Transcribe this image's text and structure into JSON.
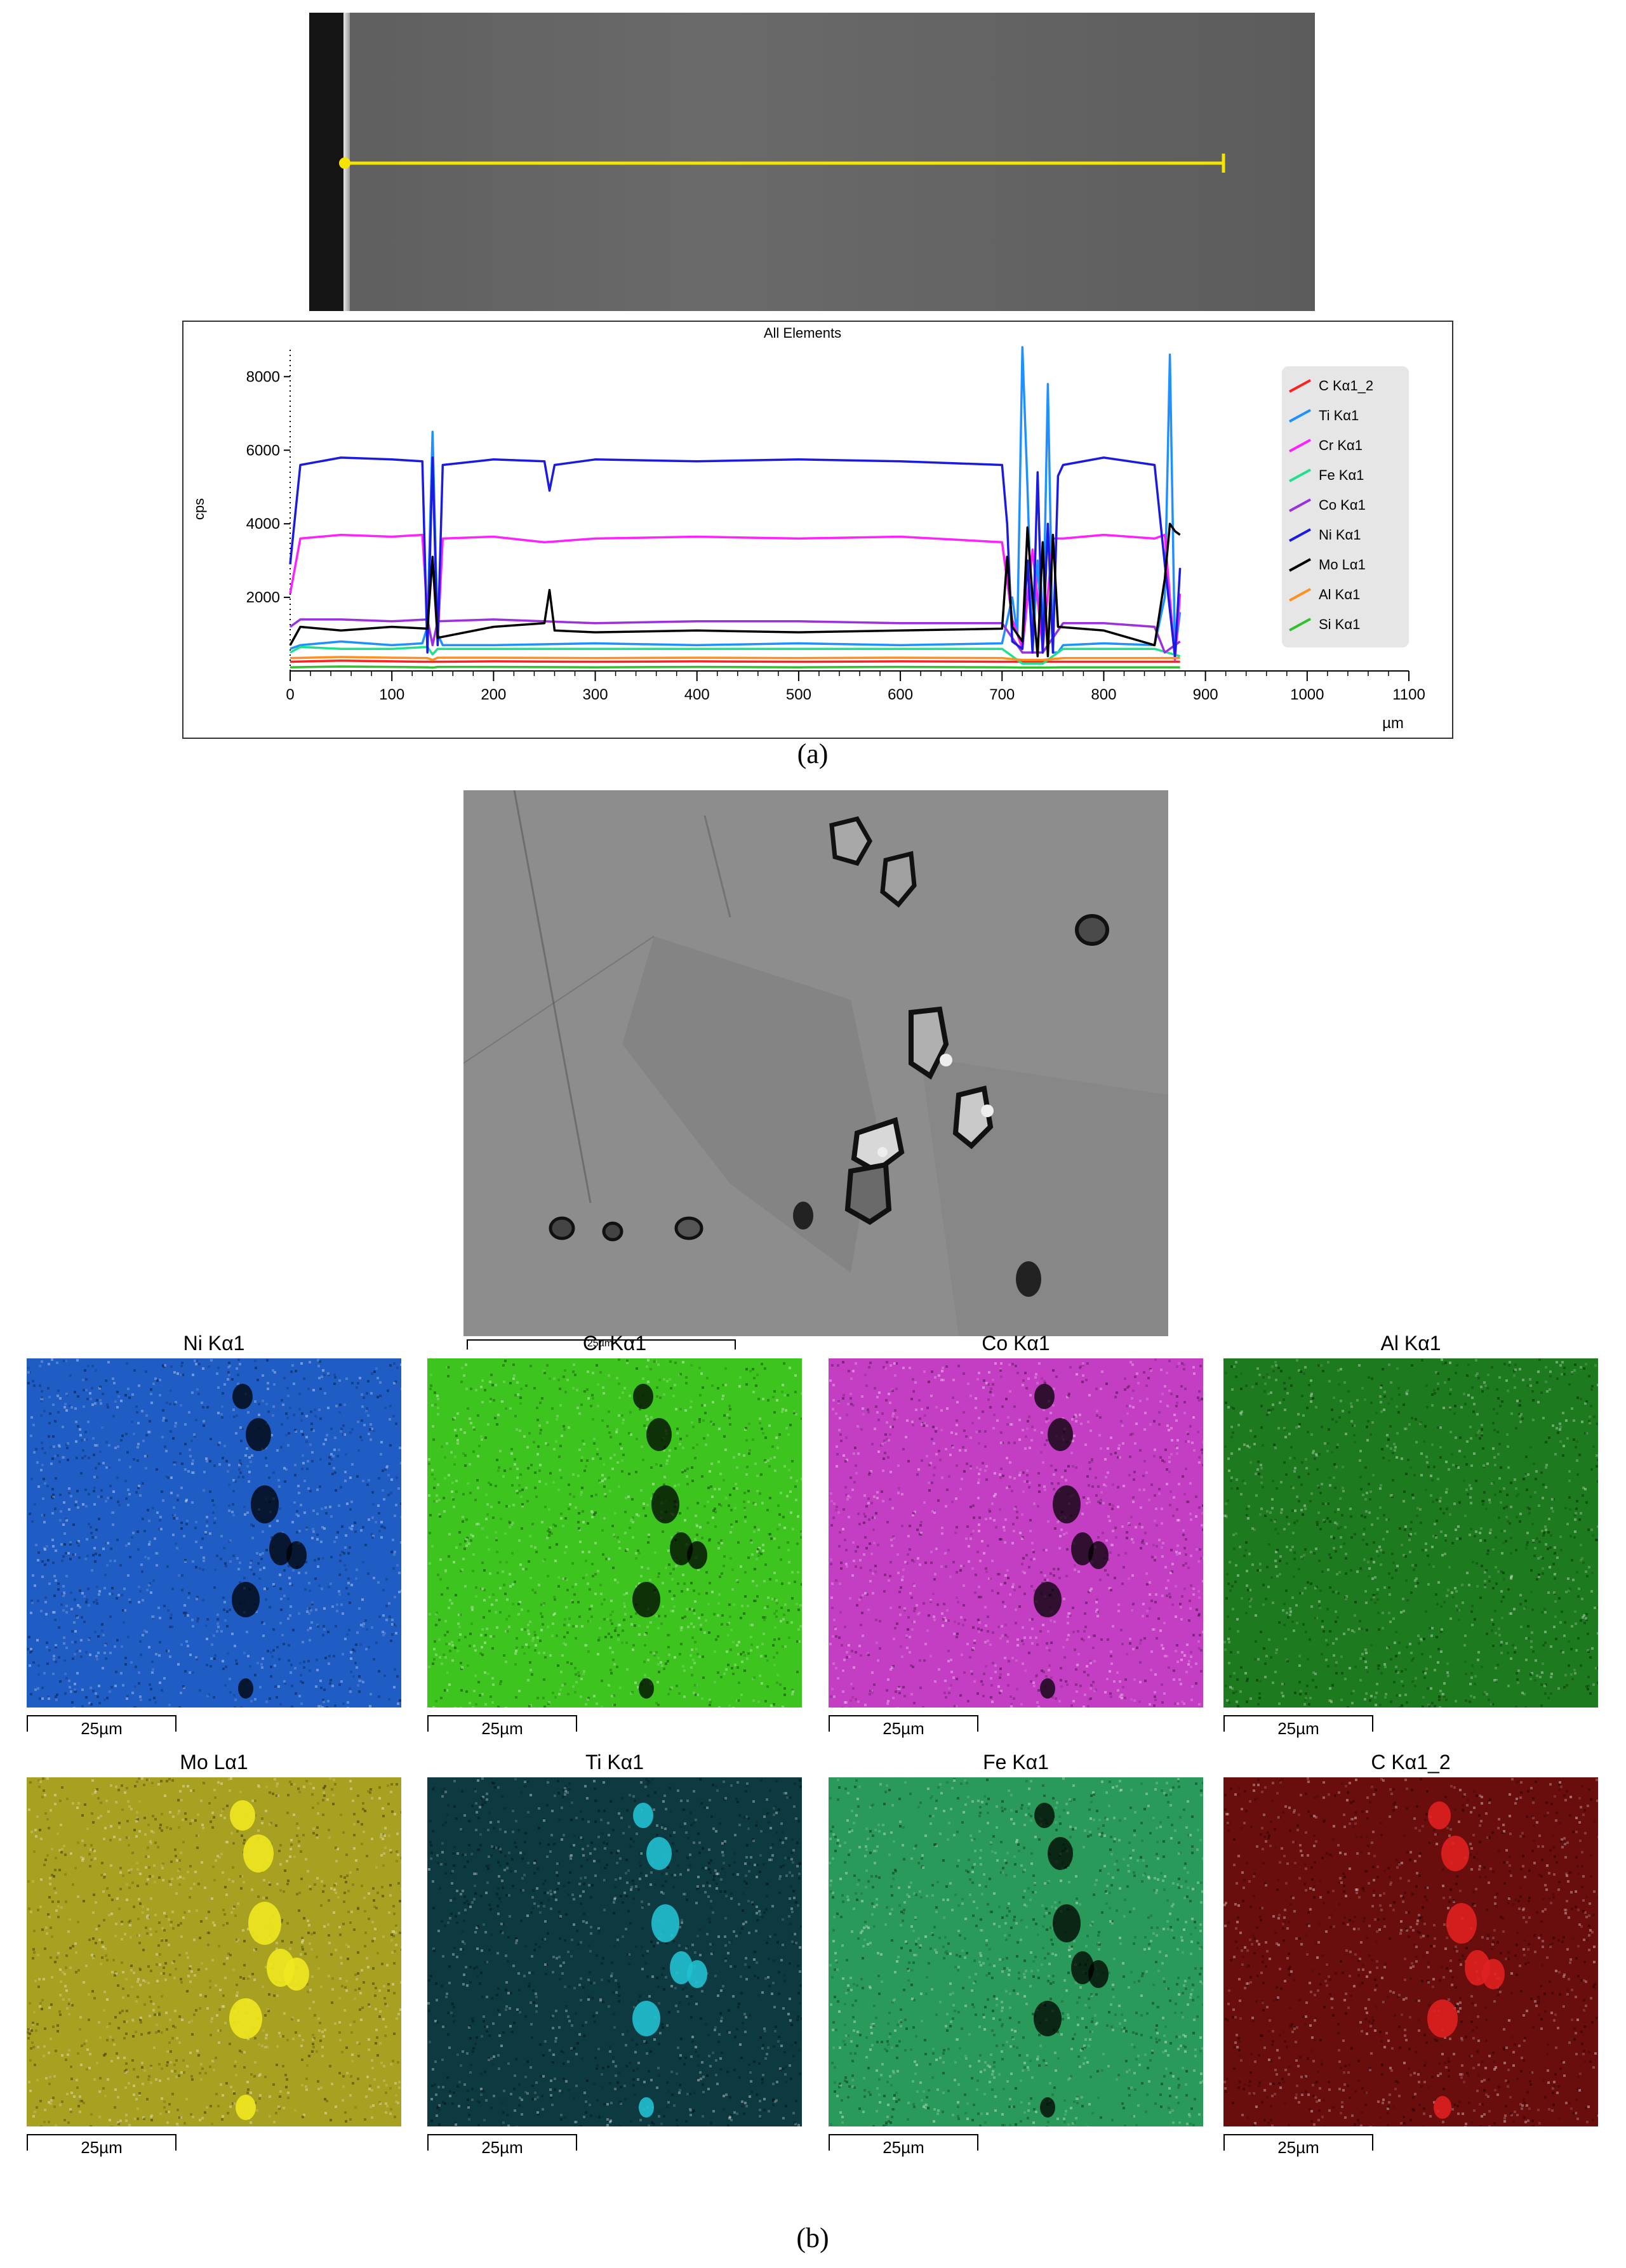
{
  "figure": {
    "panel_a_caption": "(a)",
    "panel_b_caption": "(b)"
  },
  "chart_data": {
    "type": "line",
    "title": "All Elements",
    "ylabel": "cps",
    "xlabel": "",
    "x_unit": "µm",
    "xlim": [
      0,
      1100
    ],
    "ylim": [
      0,
      8800
    ],
    "x_ticks": [
      0,
      100,
      200,
      300,
      400,
      500,
      600,
      700,
      800,
      900,
      1000,
      1100
    ],
    "y_ticks": [
      2000,
      4000,
      6000,
      8000
    ],
    "legend_position": "right",
    "series": [
      {
        "name": "C Kα1_2",
        "color": "#ff2020",
        "x": [
          0,
          50,
          100,
          135,
          140,
          145,
          200,
          300,
          400,
          500,
          600,
          700,
          720,
          740,
          760,
          800,
          850,
          875
        ],
        "y": [
          250,
          280,
          260,
          250,
          250,
          250,
          260,
          250,
          260,
          250,
          260,
          250,
          250,
          250,
          250,
          250,
          250,
          250
        ]
      },
      {
        "name": "Ti Kα1",
        "color": "#1e90ff",
        "x": [
          0,
          10,
          50,
          100,
          130,
          135,
          140,
          145,
          150,
          200,
          300,
          400,
          500,
          600,
          700,
          710,
          715,
          720,
          725,
          730,
          735,
          740,
          745,
          750,
          755,
          760,
          800,
          850,
          860,
          865,
          870,
          875
        ],
        "y": [
          600,
          700,
          800,
          700,
          750,
          1200,
          6500,
          1000,
          700,
          700,
          750,
          700,
          750,
          700,
          750,
          2000,
          1000,
          8800,
          5000,
          500,
          3000,
          500,
          7800,
          500,
          500,
          700,
          750,
          700,
          2000,
          8600,
          500,
          1600
        ]
      },
      {
        "name": "Cr Kα1",
        "color": "#ff20ff",
        "x": [
          0,
          10,
          50,
          100,
          130,
          135,
          140,
          145,
          150,
          200,
          250,
          300,
          400,
          500,
          600,
          700,
          710,
          720,
          730,
          740,
          750,
          760,
          800,
          850,
          860,
          870,
          875
        ],
        "y": [
          2100,
          3600,
          3700,
          3650,
          3700,
          1500,
          3000,
          800,
          3600,
          3650,
          3500,
          3600,
          3650,
          3600,
          3650,
          3500,
          1400,
          600,
          3300,
          600,
          3600,
          3600,
          3700,
          3600,
          3700,
          300,
          2100
        ]
      },
      {
        "name": "Fe Kα1",
        "color": "#20e090",
        "x": [
          0,
          10,
          50,
          100,
          135,
          140,
          145,
          200,
          300,
          400,
          500,
          600,
          700,
          720,
          740,
          760,
          800,
          850,
          875
        ],
        "y": [
          500,
          650,
          600,
          600,
          650,
          450,
          600,
          600,
          600,
          600,
          600,
          600,
          600,
          200,
          200,
          600,
          600,
          600,
          400
        ]
      },
      {
        "name": "Co Kα1",
        "color": "#9a30e0",
        "x": [
          0,
          10,
          50,
          100,
          135,
          140,
          145,
          200,
          300,
          400,
          500,
          600,
          700,
          720,
          740,
          760,
          800,
          850,
          860,
          875
        ],
        "y": [
          1200,
          1400,
          1400,
          1350,
          1400,
          700,
          1350,
          1400,
          1300,
          1350,
          1350,
          1300,
          1300,
          500,
          500,
          1300,
          1300,
          1200,
          500,
          800
        ]
      },
      {
        "name": "Ni Kα1",
        "color": "#1a1ae0",
        "x": [
          0,
          10,
          30,
          50,
          100,
          130,
          135,
          140,
          145,
          150,
          200,
          250,
          255,
          260,
          300,
          400,
          500,
          600,
          700,
          705,
          710,
          720,
          725,
          730,
          735,
          740,
          745,
          750,
          755,
          760,
          800,
          850,
          860,
          870,
          875
        ],
        "y": [
          2900,
          5600,
          5700,
          5800,
          5750,
          5700,
          500,
          5800,
          700,
          5600,
          5750,
          5700,
          4900,
          5600,
          5750,
          5700,
          5750,
          5700,
          5600,
          4000,
          800,
          600,
          3000,
          500,
          5400,
          500,
          4000,
          500,
          5300,
          5600,
          5800,
          5600,
          2900,
          400,
          2800
        ]
      },
      {
        "name": "Mo Lα1",
        "color": "#000000",
        "x": [
          0,
          10,
          50,
          100,
          135,
          140,
          145,
          200,
          250,
          255,
          260,
          300,
          400,
          500,
          600,
          700,
          705,
          710,
          720,
          725,
          730,
          735,
          740,
          745,
          750,
          755,
          800,
          850,
          860,
          865,
          870,
          875
        ],
        "y": [
          700,
          1200,
          1100,
          1200,
          1150,
          3100,
          900,
          1200,
          1300,
          2200,
          1100,
          1050,
          1100,
          1050,
          1100,
          1150,
          3100,
          1200,
          800,
          3900,
          2000,
          400,
          3500,
          400,
          3700,
          1200,
          1100,
          700,
          2500,
          4000,
          3800,
          3700
        ]
      },
      {
        "name": "Al Kα1",
        "color": "#ff9020",
        "x": [
          0,
          50,
          100,
          135,
          140,
          145,
          200,
          300,
          400,
          500,
          600,
          700,
          720,
          740,
          760,
          800,
          850,
          875
        ],
        "y": [
          350,
          380,
          360,
          350,
          300,
          360,
          360,
          350,
          360,
          350,
          360,
          350,
          300,
          300,
          350,
          350,
          350,
          350
        ]
      },
      {
        "name": "Si Kα1",
        "color": "#30c030",
        "x": [
          0,
          50,
          100,
          135,
          140,
          145,
          200,
          300,
          400,
          500,
          600,
          700,
          720,
          740,
          760,
          800,
          850,
          875
        ],
        "y": [
          100,
          120,
          110,
          100,
          90,
          110,
          110,
          100,
          110,
          100,
          110,
          100,
          90,
          90,
          100,
          100,
          100,
          100
        ]
      }
    ]
  },
  "sem_b": {
    "scale_label": "25µm"
  },
  "maps": [
    {
      "title": "Ni Kα1",
      "color": "#1f5cc4",
      "scale": "25µm"
    },
    {
      "title": "Cr Kα1",
      "color": "#3ec41f",
      "scale": "25µm"
    },
    {
      "title": "Co Kα1",
      "color": "#c43ec4",
      "scale": "25µm"
    },
    {
      "title": "Al Kα1",
      "color": "#1e7a1e",
      "scale": "25µm"
    },
    {
      "title": "Mo Lα1",
      "color": "#a8a020",
      "scale": "25µm"
    },
    {
      "title": "Ti Kα1",
      "color": "#0d3a40",
      "scale": "25µm"
    },
    {
      "title": "Fe Kα1",
      "color": "#2a9a5a",
      "scale": "25µm"
    },
    {
      "title": "C Kα1_2",
      "color": "#6a0d0d",
      "scale": "25µm"
    }
  ]
}
